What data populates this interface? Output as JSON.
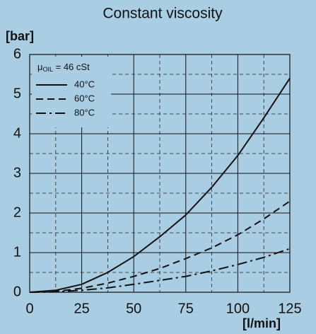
{
  "chart_data": {
    "type": "line",
    "title": "Constant viscosity",
    "y_label": "[bar]",
    "x_label": "[l/min]",
    "legend_note": {
      "symbol": "μ",
      "subscript": "OIL",
      "text": " = 46 cSt"
    },
    "x": [
      0,
      12.5,
      25,
      37.5,
      50,
      62.5,
      75,
      87.5,
      100,
      112.5,
      125
    ],
    "series": [
      {
        "name": "40°C",
        "color": "#111111",
        "dash": "solid",
        "values": [
          0,
          0.05,
          0.2,
          0.5,
          0.9,
          1.4,
          1.95,
          2.65,
          3.45,
          4.4,
          5.4
        ]
      },
      {
        "name": "60°C",
        "color": "#111111",
        "dash": "dashed",
        "values": [
          0,
          0.02,
          0.1,
          0.23,
          0.4,
          0.6,
          0.85,
          1.12,
          1.45,
          1.85,
          2.3
        ]
      },
      {
        "name": "80°C",
        "color": "#111111",
        "dash": "dashdot",
        "values": [
          0,
          0.01,
          0.05,
          0.11,
          0.2,
          0.3,
          0.4,
          0.54,
          0.7,
          0.88,
          1.1
        ]
      }
    ],
    "xlim": [
      0,
      125
    ],
    "xticks": [
      0,
      25,
      50,
      75,
      100,
      125
    ],
    "xminorticks": [
      12.5,
      37.5,
      62.5,
      87.5,
      112.5
    ],
    "ylim": [
      0,
      6
    ],
    "yticks": [
      0,
      1,
      2,
      3,
      4,
      5,
      6
    ],
    "yminorticks": [
      0.5,
      1.5,
      2.5,
      3.5,
      4.5,
      5.5
    ],
    "grid": true,
    "legend": "upper left"
  }
}
